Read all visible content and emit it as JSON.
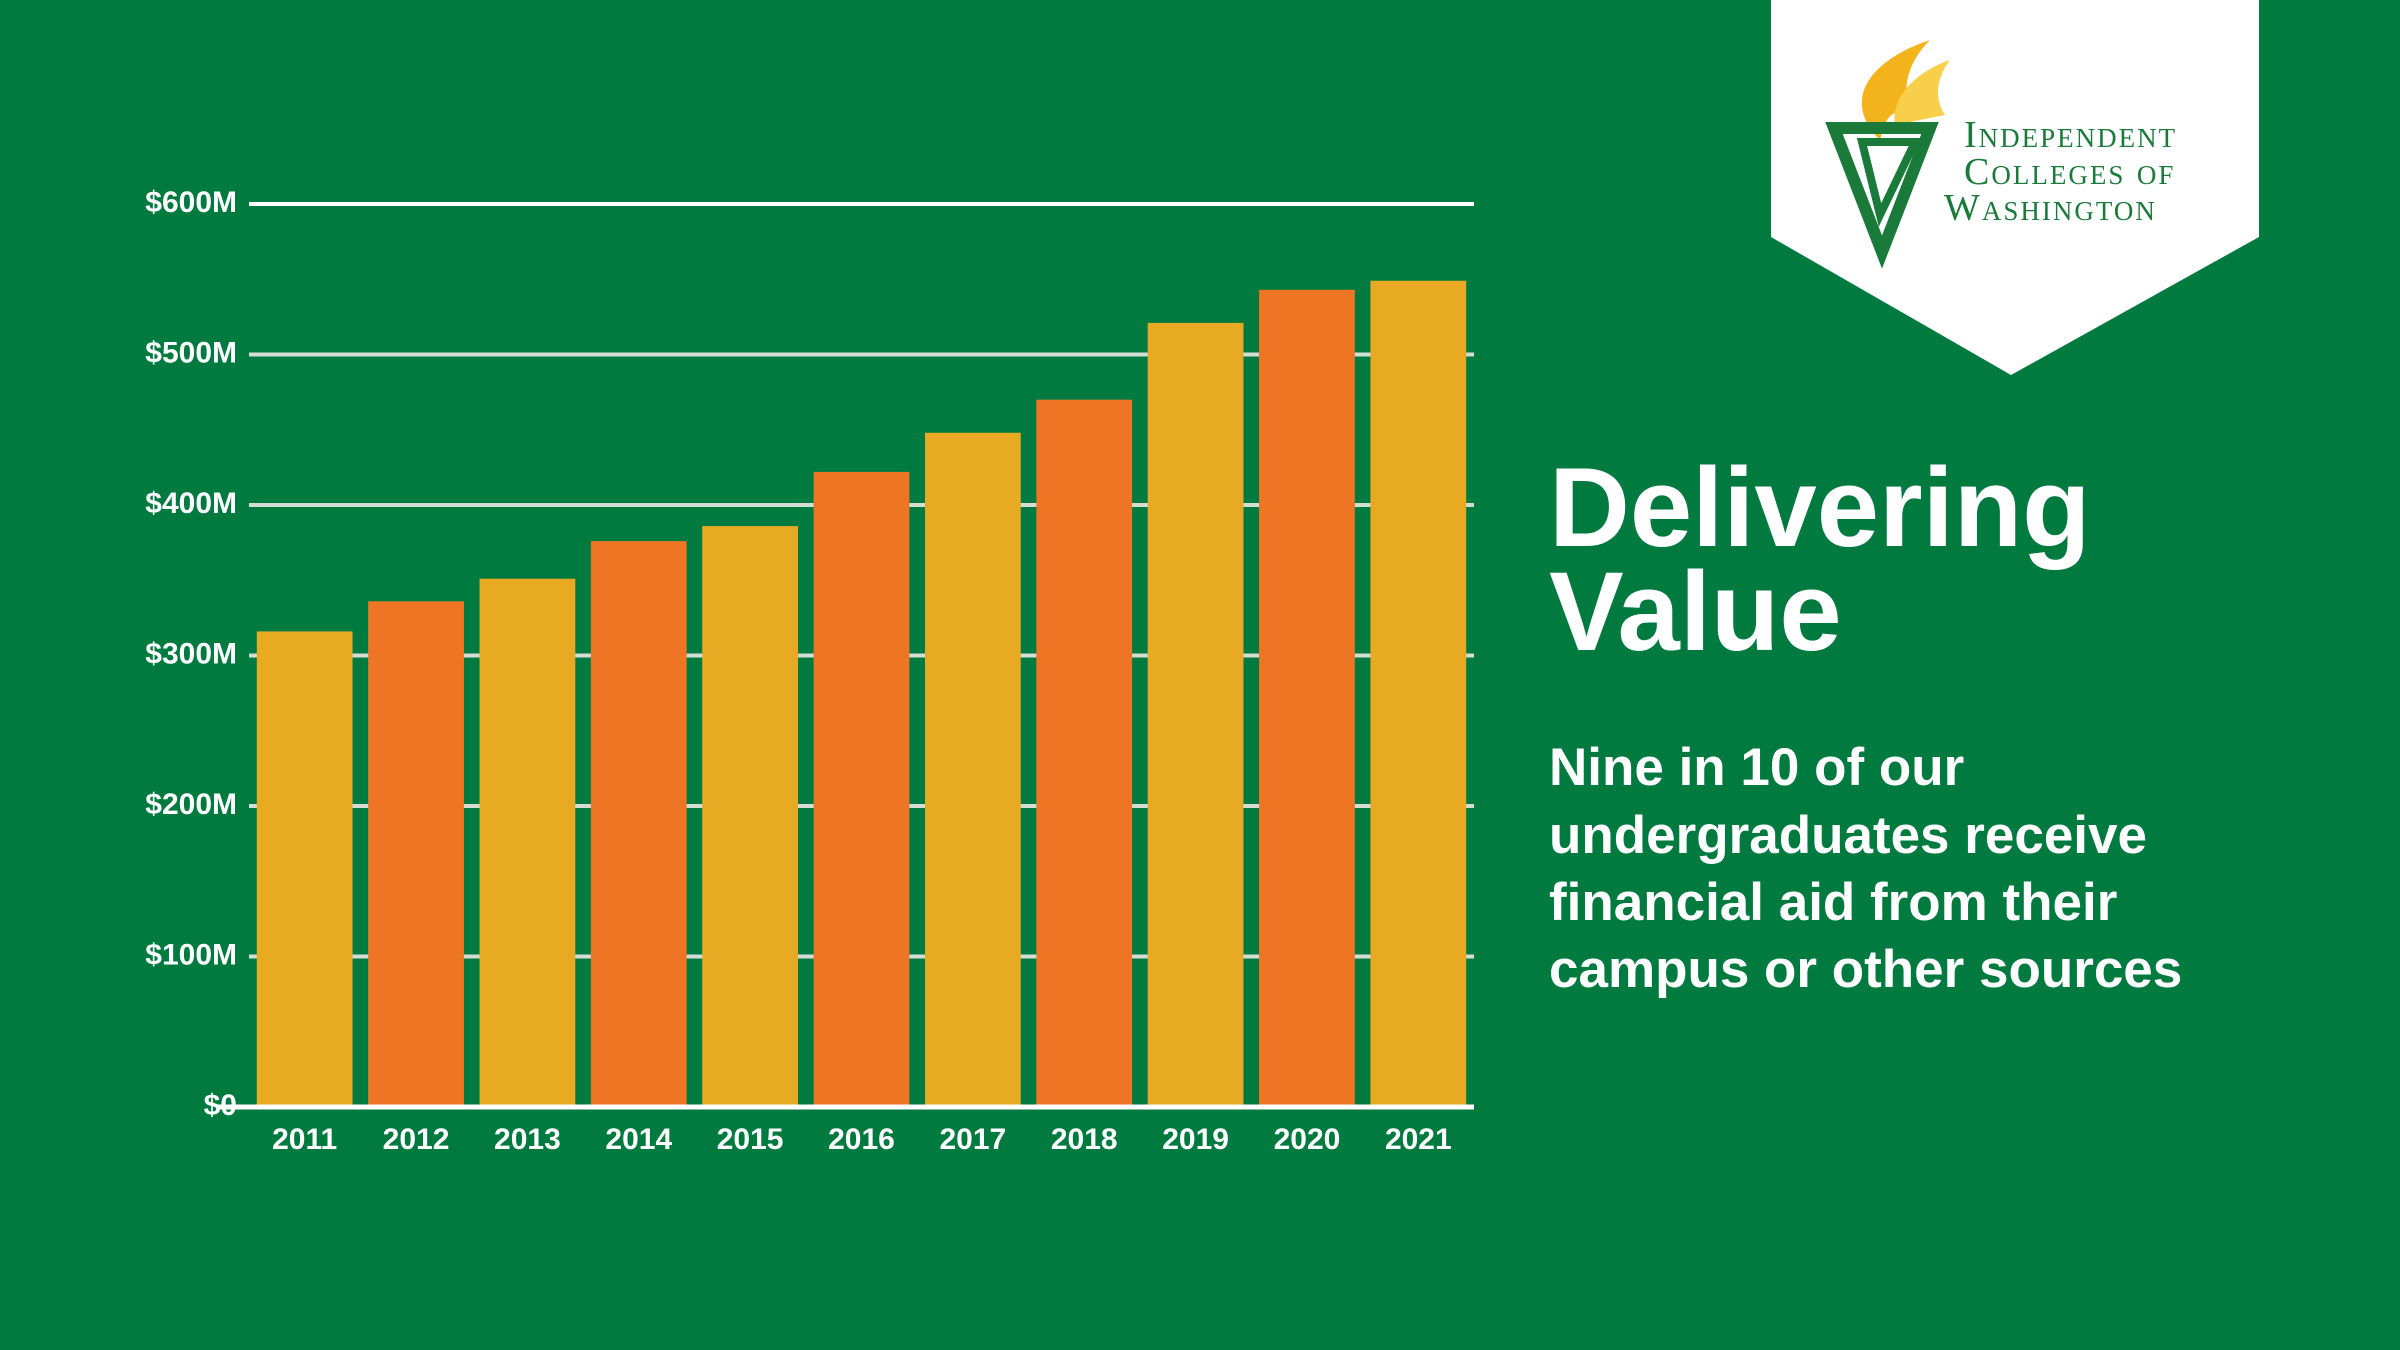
{
  "chart_data": {
    "type": "bar",
    "title": [
      "Delivering",
      "Value"
    ],
    "subtitle": [
      "Nine in 10 of our",
      "undergraduates receive",
      "financial aid from their",
      "campus or other sources"
    ],
    "logo": [
      "Independent",
      "Colleges of",
      "Washington"
    ],
    "categories": [
      "2011",
      "2012",
      "2013",
      "2014",
      "2015",
      "2016",
      "2017",
      "2018",
      "2019",
      "2020",
      "2021"
    ],
    "values": [
      316,
      336,
      351,
      376,
      386,
      422,
      448,
      470,
      521,
      543,
      549
    ],
    "colors": [
      "#e8aa22",
      "#ee7523",
      "#e8aa22",
      "#ee7523",
      "#e8aa22",
      "#ee7523",
      "#e8aa22",
      "#ee7523",
      "#e8aa22",
      "#ee7523",
      "#e8aa22"
    ],
    "ylim": [
      0,
      600
    ],
    "yticks": [
      {
        "value": 0,
        "label": "$0"
      },
      {
        "value": 100,
        "label": "$100M"
      },
      {
        "value": 200,
        "label": "$200M"
      },
      {
        "value": 300,
        "label": "$300M"
      },
      {
        "value": 400,
        "label": "$400M"
      },
      {
        "value": 500,
        "label": "$500M"
      },
      {
        "value": 600,
        "label": "$600M"
      }
    ],
    "grid": true
  }
}
